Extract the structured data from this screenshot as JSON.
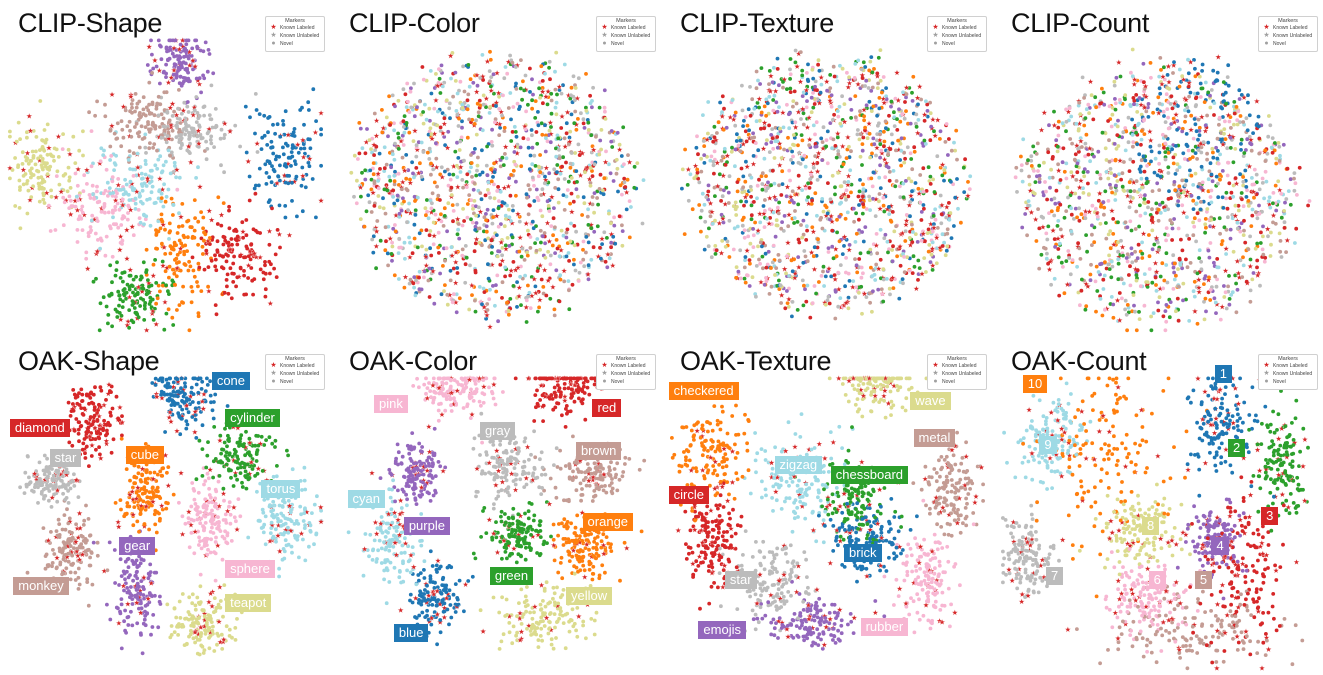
{
  "colors": {
    "blue": "#1f77b4",
    "orange": "#ff7f0e",
    "green": "#2ca02c",
    "red": "#d62728",
    "purple": "#9467bd",
    "brown": "#c49c94",
    "pink": "#f7b6d2",
    "gray": "#bcbcbc",
    "olive": "#dbdb8d",
    "cyan": "#9edae5"
  },
  "legend": {
    "title": "Markers",
    "entries": [
      {
        "label": "Known Labeled",
        "symbol": "★",
        "color": "#d62728"
      },
      {
        "label": "Known Unlabeled",
        "symbol": "★",
        "color": "#a0a0a0"
      },
      {
        "label": "Novel",
        "symbol": "●",
        "color": "#a0a0a0"
      }
    ]
  },
  "chart_data": [
    {
      "type": "scatter",
      "title": "CLIP-Shape",
      "layout": "mixed",
      "labeled": false,
      "clusters": [
        {
          "color": "blue",
          "x": 0.86,
          "y": 0.46,
          "sx": 0.06,
          "sy": 0.08
        },
        {
          "color": "red",
          "x": 0.72,
          "y": 0.76,
          "sx": 0.06,
          "sy": 0.07
        },
        {
          "color": "orange",
          "x": 0.55,
          "y": 0.75,
          "sx": 0.05,
          "sy": 0.09
        },
        {
          "color": "green",
          "x": 0.4,
          "y": 0.88,
          "sx": 0.05,
          "sy": 0.05
        },
        {
          "color": "purple",
          "x": 0.55,
          "y": 0.18,
          "sx": 0.04,
          "sy": 0.05
        },
        {
          "color": "olive",
          "x": 0.12,
          "y": 0.5,
          "sx": 0.05,
          "sy": 0.06
        },
        {
          "color": "gray",
          "x": 0.58,
          "y": 0.38,
          "sx": 0.07,
          "sy": 0.05
        },
        {
          "color": "brown",
          "x": 0.44,
          "y": 0.36,
          "sx": 0.07,
          "sy": 0.05
        },
        {
          "color": "pink",
          "x": 0.3,
          "y": 0.62,
          "sx": 0.07,
          "sy": 0.07
        },
        {
          "color": "cyan",
          "x": 0.42,
          "y": 0.54,
          "sx": 0.08,
          "sy": 0.06
        }
      ]
    },
    {
      "type": "scatter",
      "title": "CLIP-Color",
      "layout": "mixed",
      "labeled": false,
      "clusters": [
        {
          "color": "blue",
          "x": 0.5,
          "y": 0.55,
          "sx": 0.22,
          "sy": 0.24
        },
        {
          "color": "orange",
          "x": 0.5,
          "y": 0.55,
          "sx": 0.22,
          "sy": 0.24
        },
        {
          "color": "green",
          "x": 0.5,
          "y": 0.55,
          "sx": 0.22,
          "sy": 0.24
        },
        {
          "color": "red",
          "x": 0.5,
          "y": 0.55,
          "sx": 0.22,
          "sy": 0.24
        },
        {
          "color": "purple",
          "x": 0.5,
          "y": 0.55,
          "sx": 0.22,
          "sy": 0.24
        },
        {
          "color": "brown",
          "x": 0.5,
          "y": 0.55,
          "sx": 0.22,
          "sy": 0.24
        },
        {
          "color": "pink",
          "x": 0.5,
          "y": 0.55,
          "sx": 0.22,
          "sy": 0.24
        },
        {
          "color": "gray",
          "x": 0.5,
          "y": 0.55,
          "sx": 0.22,
          "sy": 0.24
        },
        {
          "color": "olive",
          "x": 0.5,
          "y": 0.55,
          "sx": 0.22,
          "sy": 0.24
        },
        {
          "color": "cyan",
          "x": 0.5,
          "y": 0.55,
          "sx": 0.22,
          "sy": 0.24
        }
      ]
    },
    {
      "type": "scatter",
      "title": "CLIP-Texture",
      "layout": "mixed",
      "labeled": false,
      "clusters": [
        {
          "color": "blue",
          "x": 0.5,
          "y": 0.55,
          "sx": 0.22,
          "sy": 0.24
        },
        {
          "color": "orange",
          "x": 0.5,
          "y": 0.55,
          "sx": 0.22,
          "sy": 0.24
        },
        {
          "color": "green",
          "x": 0.5,
          "y": 0.55,
          "sx": 0.22,
          "sy": 0.24
        },
        {
          "color": "red",
          "x": 0.5,
          "y": 0.55,
          "sx": 0.22,
          "sy": 0.24
        },
        {
          "color": "purple",
          "x": 0.5,
          "y": 0.55,
          "sx": 0.22,
          "sy": 0.24
        },
        {
          "color": "brown",
          "x": 0.5,
          "y": 0.55,
          "sx": 0.22,
          "sy": 0.24
        },
        {
          "color": "pink",
          "x": 0.5,
          "y": 0.55,
          "sx": 0.22,
          "sy": 0.24
        },
        {
          "color": "gray",
          "x": 0.5,
          "y": 0.55,
          "sx": 0.22,
          "sy": 0.24
        },
        {
          "color": "olive",
          "x": 0.5,
          "y": 0.55,
          "sx": 0.22,
          "sy": 0.24
        },
        {
          "color": "cyan",
          "x": 0.5,
          "y": 0.55,
          "sx": 0.22,
          "sy": 0.24
        }
      ]
    },
    {
      "type": "scatter",
      "title": "CLIP-Count",
      "layout": "mixed",
      "labeled": false,
      "clusters": [
        {
          "color": "blue",
          "x": 0.62,
          "y": 0.4,
          "sx": 0.1,
          "sy": 0.14
        },
        {
          "color": "orange",
          "x": 0.5,
          "y": 0.58,
          "sx": 0.22,
          "sy": 0.24
        },
        {
          "color": "green",
          "x": 0.5,
          "y": 0.58,
          "sx": 0.22,
          "sy": 0.24
        },
        {
          "color": "red",
          "x": 0.5,
          "y": 0.58,
          "sx": 0.22,
          "sy": 0.24
        },
        {
          "color": "purple",
          "x": 0.5,
          "y": 0.58,
          "sx": 0.22,
          "sy": 0.24
        },
        {
          "color": "brown",
          "x": 0.5,
          "y": 0.58,
          "sx": 0.22,
          "sy": 0.24
        },
        {
          "color": "pink",
          "x": 0.5,
          "y": 0.58,
          "sx": 0.22,
          "sy": 0.24
        },
        {
          "color": "gray",
          "x": 0.5,
          "y": 0.58,
          "sx": 0.22,
          "sy": 0.24
        },
        {
          "color": "olive",
          "x": 0.5,
          "y": 0.58,
          "sx": 0.22,
          "sy": 0.24
        },
        {
          "color": "cyan",
          "x": 0.5,
          "y": 0.58,
          "sx": 0.22,
          "sy": 0.24
        }
      ]
    },
    {
      "type": "scatter",
      "title": "OAK-Shape",
      "layout": "clustered",
      "labeled": true,
      "clusters": [
        {
          "label": "cone",
          "color": "blue",
          "x": 0.55,
          "y": 0.17,
          "sx": 0.05,
          "sy": 0.05,
          "lx": 0.64,
          "ly": 0.1
        },
        {
          "label": "diamond",
          "color": "red",
          "x": 0.28,
          "y": 0.25,
          "sx": 0.04,
          "sy": 0.05,
          "lx": 0.03,
          "ly": 0.24
        },
        {
          "label": "cylinder",
          "color": "green",
          "x": 0.73,
          "y": 0.35,
          "sx": 0.05,
          "sy": 0.05,
          "lx": 0.68,
          "ly": 0.21
        },
        {
          "label": "star",
          "color": "gray",
          "x": 0.15,
          "y": 0.42,
          "sx": 0.04,
          "sy": 0.03,
          "lx": 0.15,
          "ly": 0.33
        },
        {
          "label": "cube",
          "color": "orange",
          "x": 0.44,
          "y": 0.45,
          "sx": 0.04,
          "sy": 0.06,
          "lx": 0.38,
          "ly": 0.32
        },
        {
          "label": "torus",
          "color": "cyan",
          "x": 0.87,
          "y": 0.54,
          "sx": 0.05,
          "sy": 0.06,
          "lx": 0.79,
          "ly": 0.42
        },
        {
          "label": "sphere",
          "color": "pink",
          "x": 0.63,
          "y": 0.54,
          "sx": 0.04,
          "sy": 0.06,
          "lx": 0.68,
          "ly": 0.66
        },
        {
          "label": "monkey",
          "color": "brown",
          "x": 0.21,
          "y": 0.62,
          "sx": 0.04,
          "sy": 0.05,
          "lx": 0.04,
          "ly": 0.71
        },
        {
          "label": "gear",
          "color": "purple",
          "x": 0.41,
          "y": 0.75,
          "sx": 0.04,
          "sy": 0.07,
          "lx": 0.36,
          "ly": 0.59
        },
        {
          "label": "teapot",
          "color": "olive",
          "x": 0.62,
          "y": 0.85,
          "sx": 0.05,
          "sy": 0.05,
          "lx": 0.68,
          "ly": 0.76
        }
      ]
    },
    {
      "type": "scatter",
      "title": "OAK-Color",
      "layout": "clustered",
      "labeled": true,
      "clusters": [
        {
          "label": "pink",
          "color": "pink",
          "x": 0.38,
          "y": 0.15,
          "sx": 0.06,
          "sy": 0.04,
          "lx": 0.13,
          "ly": 0.17
        },
        {
          "label": "red",
          "color": "red",
          "x": 0.7,
          "y": 0.14,
          "sx": 0.06,
          "sy": 0.04,
          "lx": 0.79,
          "ly": 0.18
        },
        {
          "label": "gray",
          "color": "gray",
          "x": 0.54,
          "y": 0.38,
          "sx": 0.05,
          "sy": 0.05,
          "lx": 0.45,
          "ly": 0.25
        },
        {
          "label": "brown",
          "color": "brown",
          "x": 0.78,
          "y": 0.4,
          "sx": 0.06,
          "sy": 0.04,
          "lx": 0.74,
          "ly": 0.31
        },
        {
          "label": "purple",
          "color": "purple",
          "x": 0.26,
          "y": 0.4,
          "sx": 0.04,
          "sy": 0.05,
          "lx": 0.22,
          "ly": 0.53
        },
        {
          "label": "cyan",
          "color": "cyan",
          "x": 0.18,
          "y": 0.6,
          "sx": 0.04,
          "sy": 0.07,
          "lx": 0.05,
          "ly": 0.45
        },
        {
          "label": "green",
          "color": "green",
          "x": 0.57,
          "y": 0.58,
          "sx": 0.05,
          "sy": 0.04,
          "lx": 0.48,
          "ly": 0.68
        },
        {
          "label": "orange",
          "color": "orange",
          "x": 0.77,
          "y": 0.62,
          "sx": 0.05,
          "sy": 0.05,
          "lx": 0.76,
          "ly": 0.52
        },
        {
          "label": "blue",
          "color": "blue",
          "x": 0.32,
          "y": 0.77,
          "sx": 0.04,
          "sy": 0.05,
          "lx": 0.19,
          "ly": 0.85
        },
        {
          "label": "yellow",
          "color": "olive",
          "x": 0.64,
          "y": 0.82,
          "sx": 0.08,
          "sy": 0.05,
          "lx": 0.71,
          "ly": 0.74
        }
      ]
    },
    {
      "type": "scatter",
      "title": "OAK-Texture",
      "layout": "clustered",
      "labeled": true,
      "clusters": [
        {
          "label": "checkered",
          "color": "orange",
          "x": 0.15,
          "y": 0.35,
          "sx": 0.06,
          "sy": 0.08,
          "lx": 0.02,
          "ly": 0.13
        },
        {
          "label": "wave",
          "color": "olive",
          "x": 0.64,
          "y": 0.12,
          "sx": 0.05,
          "sy": 0.05,
          "lx": 0.75,
          "ly": 0.16
        },
        {
          "label": "metal",
          "color": "brown",
          "x": 0.87,
          "y": 0.45,
          "sx": 0.04,
          "sy": 0.06,
          "lx": 0.76,
          "ly": 0.27
        },
        {
          "label": "zigzag",
          "color": "cyan",
          "x": 0.42,
          "y": 0.42,
          "sx": 0.07,
          "sy": 0.07,
          "lx": 0.34,
          "ly": 0.35
        },
        {
          "label": "chessboard",
          "color": "green",
          "x": 0.58,
          "y": 0.48,
          "sx": 0.05,
          "sy": 0.06,
          "lx": 0.51,
          "ly": 0.38
        },
        {
          "label": "circle",
          "color": "red",
          "x": 0.15,
          "y": 0.6,
          "sx": 0.04,
          "sy": 0.07,
          "lx": 0.02,
          "ly": 0.44
        },
        {
          "label": "brick",
          "color": "blue",
          "x": 0.62,
          "y": 0.6,
          "sx": 0.06,
          "sy": 0.05,
          "lx": 0.55,
          "ly": 0.61
        },
        {
          "label": "star",
          "color": "gray",
          "x": 0.33,
          "y": 0.72,
          "sx": 0.06,
          "sy": 0.06,
          "lx": 0.19,
          "ly": 0.69
        },
        {
          "label": "emojis",
          "color": "purple",
          "x": 0.45,
          "y": 0.85,
          "sx": 0.07,
          "sy": 0.04,
          "lx": 0.11,
          "ly": 0.84
        },
        {
          "label": "rubber",
          "color": "pink",
          "x": 0.8,
          "y": 0.7,
          "sx": 0.04,
          "sy": 0.07,
          "lx": 0.6,
          "ly": 0.83
        }
      ]
    },
    {
      "type": "scatter",
      "title": "OAK-Count",
      "layout": "clustered",
      "labeled": true,
      "clusters": [
        {
          "label": "1",
          "color": "blue",
          "x": 0.69,
          "y": 0.26,
          "sx": 0.05,
          "sy": 0.07,
          "lx": 0.67,
          "ly": 0.08
        },
        {
          "label": "10",
          "color": "orange",
          "x": 0.35,
          "y": 0.36,
          "sx": 0.1,
          "sy": 0.14,
          "lx": 0.09,
          "ly": 0.11
        },
        {
          "label": "2",
          "color": "green",
          "x": 0.87,
          "y": 0.38,
          "sx": 0.04,
          "sy": 0.08,
          "lx": 0.71,
          "ly": 0.3
        },
        {
          "label": "9",
          "color": "cyan",
          "x": 0.18,
          "y": 0.3,
          "sx": 0.05,
          "sy": 0.06,
          "lx": 0.14,
          "ly": 0.29
        },
        {
          "label": "3",
          "color": "red",
          "x": 0.76,
          "y": 0.7,
          "sx": 0.06,
          "sy": 0.12,
          "lx": 0.81,
          "ly": 0.5
        },
        {
          "label": "8",
          "color": "olive",
          "x": 0.44,
          "y": 0.57,
          "sx": 0.06,
          "sy": 0.06,
          "lx": 0.45,
          "ly": 0.53
        },
        {
          "label": "4",
          "color": "purple",
          "x": 0.68,
          "y": 0.6,
          "sx": 0.04,
          "sy": 0.05,
          "lx": 0.66,
          "ly": 0.59
        },
        {
          "label": "7",
          "color": "gray",
          "x": 0.1,
          "y": 0.65,
          "sx": 0.04,
          "sy": 0.06,
          "lx": 0.16,
          "ly": 0.68
        },
        {
          "label": "6",
          "color": "pink",
          "x": 0.46,
          "y": 0.77,
          "sx": 0.06,
          "sy": 0.05,
          "lx": 0.47,
          "ly": 0.69
        },
        {
          "label": "5",
          "color": "brown",
          "x": 0.6,
          "y": 0.86,
          "sx": 0.14,
          "sy": 0.05,
          "lx": 0.61,
          "ly": 0.69
        }
      ]
    }
  ]
}
